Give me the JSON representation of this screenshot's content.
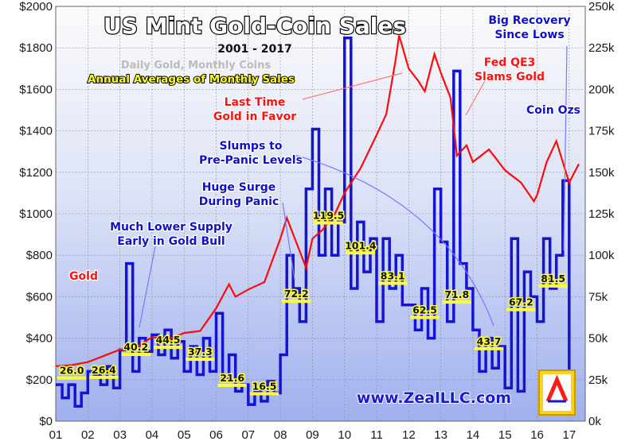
{
  "chart_data": {
    "type": "line",
    "title": "US Mint Gold-Coin Sales",
    "subtitle": "2001 - 2017",
    "subtitle2": "Daily Gold, Monthly Coins",
    "subtitle3": "Annual Averages of Monthly Sales",
    "watermark": "www.ZealLLC.com",
    "y_left": {
      "min": 0,
      "max": 2000,
      "ticks": [
        "$0",
        "$200",
        "$400",
        "$600",
        "$800",
        "$1000",
        "$1200",
        "$1400",
        "$1600",
        "$1800",
        "$2000"
      ]
    },
    "y_right": {
      "min": 0,
      "max": 250,
      "ticks": [
        "0k",
        "25k",
        "50k",
        "75k",
        "100k",
        "125k",
        "150k",
        "175k",
        "200k",
        "225k",
        "250k"
      ]
    },
    "x_ticks": [
      "01",
      "02",
      "03",
      "04",
      "05",
      "06",
      "07",
      "08",
      "09",
      "10",
      "11",
      "12",
      "13",
      "14",
      "15",
      "16",
      "17"
    ],
    "x_range": [
      2001.0,
      2017.5
    ],
    "grid": true,
    "colors": {
      "gold": "#ff0a0a",
      "coins": "#1414d2",
      "avg": "#ffff33",
      "panel_top": "#fbfbfb",
      "panel_bottom": "#9fb0ee"
    },
    "series": [
      {
        "name": "Gold",
        "axis": "left",
        "points": [
          [
            2001.0,
            265
          ],
          [
            2001.5,
            270
          ],
          [
            2002.0,
            285
          ],
          [
            2002.5,
            315
          ],
          [
            2003.0,
            345
          ],
          [
            2003.5,
            355
          ],
          [
            2004.0,
            405
          ],
          [
            2004.5,
            395
          ],
          [
            2005.0,
            425
          ],
          [
            2005.5,
            435
          ],
          [
            2006.0,
            545
          ],
          [
            2006.4,
            660
          ],
          [
            2006.6,
            600
          ],
          [
            2007.0,
            635
          ],
          [
            2007.5,
            670
          ],
          [
            2008.0,
            880
          ],
          [
            2008.2,
            980
          ],
          [
            2008.5,
            860
          ],
          [
            2008.8,
            740
          ],
          [
            2009.0,
            880
          ],
          [
            2009.3,
            920
          ],
          [
            2009.7,
            1000
          ],
          [
            2010.0,
            1100
          ],
          [
            2010.5,
            1220
          ],
          [
            2011.0,
            1380
          ],
          [
            2011.3,
            1480
          ],
          [
            2011.6,
            1750
          ],
          [
            2011.7,
            1860
          ],
          [
            2012.0,
            1700
          ],
          [
            2012.3,
            1640
          ],
          [
            2012.5,
            1590
          ],
          [
            2012.8,
            1770
          ],
          [
            2013.0,
            1680
          ],
          [
            2013.3,
            1560
          ],
          [
            2013.5,
            1280
          ],
          [
            2013.8,
            1330
          ],
          [
            2014.0,
            1250
          ],
          [
            2014.5,
            1310
          ],
          [
            2015.0,
            1210
          ],
          [
            2015.5,
            1150
          ],
          [
            2015.9,
            1060
          ],
          [
            2016.0,
            1090
          ],
          [
            2016.3,
            1250
          ],
          [
            2016.6,
            1350
          ],
          [
            2016.9,
            1200
          ],
          [
            2017.0,
            1150
          ],
          [
            2017.3,
            1240
          ]
        ]
      },
      {
        "name": "Coin Ozs",
        "axis": "right",
        "points": [
          [
            2001.0,
            22
          ],
          [
            2001.2,
            14
          ],
          [
            2001.4,
            22
          ],
          [
            2001.6,
            9
          ],
          [
            2001.8,
            17
          ],
          [
            2002.0,
            30
          ],
          [
            2002.2,
            28
          ],
          [
            2002.4,
            22
          ],
          [
            2002.6,
            33
          ],
          [
            2002.8,
            20
          ],
          [
            2003.0,
            43
          ],
          [
            2003.2,
            95
          ],
          [
            2003.4,
            30
          ],
          [
            2003.6,
            50
          ],
          [
            2003.8,
            42
          ],
          [
            2004.0,
            52
          ],
          [
            2004.2,
            40
          ],
          [
            2004.4,
            55
          ],
          [
            2004.6,
            38
          ],
          [
            2004.8,
            48
          ],
          [
            2005.0,
            30
          ],
          [
            2005.2,
            45
          ],
          [
            2005.4,
            28
          ],
          [
            2005.6,
            50
          ],
          [
            2005.8,
            30
          ],
          [
            2006.0,
            65
          ],
          [
            2006.2,
            25
          ],
          [
            2006.4,
            40
          ],
          [
            2006.6,
            18
          ],
          [
            2006.8,
            22
          ],
          [
            2007.0,
            10
          ],
          [
            2007.2,
            18
          ],
          [
            2007.4,
            12
          ],
          [
            2007.6,
            24
          ],
          [
            2007.8,
            17
          ],
          [
            2008.0,
            40
          ],
          [
            2008.2,
            100
          ],
          [
            2008.4,
            80
          ],
          [
            2008.6,
            60
          ],
          [
            2008.8,
            140
          ],
          [
            2009.0,
            176
          ],
          [
            2009.2,
            100
          ],
          [
            2009.4,
            140
          ],
          [
            2009.6,
            100
          ],
          [
            2009.8,
            120
          ],
          [
            2010.0,
            231
          ],
          [
            2010.2,
            80
          ],
          [
            2010.4,
            120
          ],
          [
            2010.6,
            90
          ],
          [
            2010.8,
            110
          ],
          [
            2011.0,
            60
          ],
          [
            2011.2,
            110
          ],
          [
            2011.4,
            80
          ],
          [
            2011.6,
            100
          ],
          [
            2011.8,
            70
          ],
          [
            2012.0,
            70
          ],
          [
            2012.2,
            55
          ],
          [
            2012.4,
            80
          ],
          [
            2012.6,
            50
          ],
          [
            2012.8,
            140
          ],
          [
            2013.0,
            108
          ],
          [
            2013.2,
            60
          ],
          [
            2013.4,
            211
          ],
          [
            2013.6,
            95
          ],
          [
            2013.8,
            80
          ],
          [
            2014.0,
            55
          ],
          [
            2014.2,
            30
          ],
          [
            2014.4,
            50
          ],
          [
            2014.6,
            32
          ],
          [
            2014.8,
            45
          ],
          [
            2015.0,
            20
          ],
          [
            2015.2,
            110
          ],
          [
            2015.4,
            18
          ],
          [
            2015.6,
            90
          ],
          [
            2015.8,
            75
          ],
          [
            2016.0,
            60
          ],
          [
            2016.2,
            110
          ],
          [
            2016.4,
            80
          ],
          [
            2016.6,
            100
          ],
          [
            2016.8,
            145
          ],
          [
            2017.0,
            30
          ]
        ]
      }
    ],
    "averages": [
      {
        "year": 2001,
        "label": "26.0",
        "value": 26.0
      },
      {
        "year": 2002,
        "label": "26.4",
        "value": 26.4
      },
      {
        "year": 2003,
        "label": "40.2",
        "value": 40.2
      },
      {
        "year": 2004,
        "label": "44.5",
        "value": 44.5
      },
      {
        "year": 2005,
        "label": "37.3",
        "value": 37.3
      },
      {
        "year": 2006,
        "label": "21.6",
        "value": 21.6
      },
      {
        "year": 2007,
        "label": "16.5",
        "value": 16.5
      },
      {
        "year": 2008,
        "label": "72.2",
        "value": 72.2
      },
      {
        "year": 2009,
        "label": "119.5",
        "value": 119.5
      },
      {
        "year": 2010,
        "label": "101.4",
        "value": 101.4
      },
      {
        "year": 2011,
        "label": "83.1",
        "value": 83.1
      },
      {
        "year": 2012,
        "label": "62.5",
        "value": 62.5
      },
      {
        "year": 2013,
        "label": "71.8",
        "value": 71.8
      },
      {
        "year": 2014,
        "label": "43.7",
        "value": 43.7
      },
      {
        "year": 2015,
        "label": "67.2",
        "value": 67.2
      },
      {
        "year": 2016,
        "label": "81.5",
        "value": 81.5
      }
    ],
    "annotations": [
      {
        "id": "gold",
        "text": [
          "Gold"
        ],
        "color": "#ff1010"
      },
      {
        "id": "coinozs",
        "text": [
          "Coin Ozs"
        ],
        "color": "#1010cc"
      },
      {
        "id": "lower-supply",
        "text": [
          "Much Lower Supply",
          "Early in Gold Bull"
        ],
        "color": "#1010cc"
      },
      {
        "id": "huge-surge",
        "text": [
          "Huge Surge",
          "During Panic"
        ],
        "color": "#1010cc"
      },
      {
        "id": "slumps",
        "text": [
          "Slumps to",
          "Pre-Panic Levels"
        ],
        "color": "#1010cc"
      },
      {
        "id": "last-time",
        "text": [
          "Last Time",
          "Gold in Favor"
        ],
        "color": "#ff1010"
      },
      {
        "id": "fed-qe3",
        "text": [
          "Fed QE3",
          "Slams Gold"
        ],
        "color": "#ff1010"
      },
      {
        "id": "big-recovery",
        "text": [
          "Big Recovery",
          "Since Lows"
        ],
        "color": "#1010cc"
      }
    ]
  }
}
